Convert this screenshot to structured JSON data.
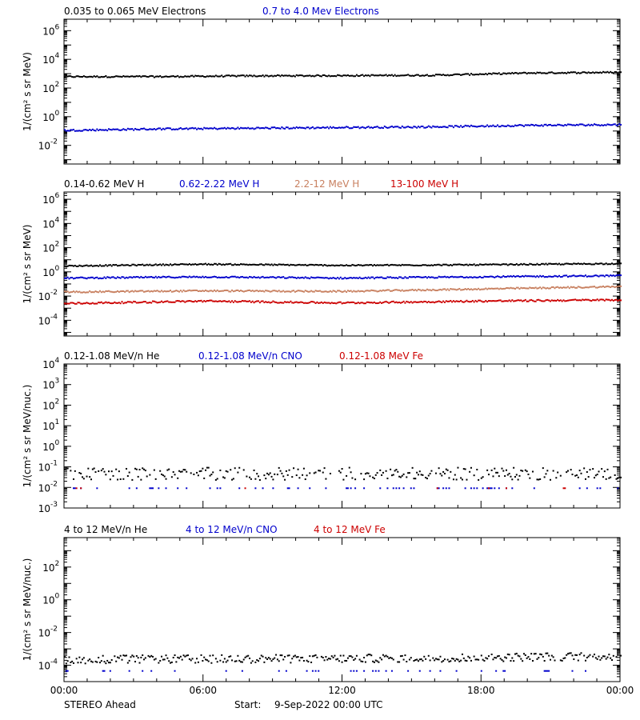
{
  "footer": {
    "left": "STEREO Ahead",
    "start_label": "Start:",
    "start_value": "9-Sep-2022 00:00 UTC"
  },
  "x_ticks": [
    "00:00",
    "06:00",
    "12:00",
    "18:00",
    "00:00"
  ],
  "chart_data": [
    {
      "type": "scatter",
      "ylabel": "1/(cm² s sr MeV)",
      "yscale": "log",
      "ylim_exp": [
        -3.3,
        6.8
      ],
      "ytick_exponents": [
        -2,
        0,
        2,
        4,
        6
      ],
      "xlim_hours": [
        0,
        24
      ],
      "series": [
        {
          "name": "0.035 to 0.065 MeV Electrons",
          "color": "#000000",
          "log_values": [
            [
              0,
              2.85
            ],
            [
              4,
              2.85
            ],
            [
              8,
              2.9
            ],
            [
              12,
              2.92
            ],
            [
              16,
              2.95
            ],
            [
              20,
              3.1
            ],
            [
              24,
              3.15
            ]
          ],
          "fill": 1.0,
          "jitter": 0.05
        },
        {
          "name": "0.7 to 4.0 Mev Electrons",
          "color": "#0000cc",
          "log_values": [
            [
              0,
              -0.9
            ],
            [
              4,
              -0.8
            ],
            [
              8,
              -0.75
            ],
            [
              12,
              -0.7
            ],
            [
              16,
              -0.65
            ],
            [
              20,
              -0.55
            ],
            [
              24,
              -0.5
            ]
          ],
          "fill": 1.0,
          "jitter": 0.06
        }
      ]
    },
    {
      "type": "scatter",
      "ylabel": "1/(cm² s sr MeV)",
      "yscale": "log",
      "ylim_exp": [
        -5.3,
        6.6
      ],
      "ytick_exponents": [
        -4,
        -2,
        0,
        2,
        4,
        6
      ],
      "xlim_hours": [
        0,
        24
      ],
      "series": [
        {
          "name": "0.14-0.62 MeV H",
          "color": "#000000",
          "log_values": [
            [
              0,
              0.55
            ],
            [
              6,
              0.7
            ],
            [
              12,
              0.6
            ],
            [
              18,
              0.65
            ],
            [
              24,
              0.75
            ]
          ],
          "fill": 1.0,
          "jitter": 0.05
        },
        {
          "name": "0.62-2.22 MeV H",
          "color": "#0000cc",
          "log_values": [
            [
              0,
              -0.45
            ],
            [
              6,
              -0.35
            ],
            [
              12,
              -0.45
            ],
            [
              18,
              -0.35
            ],
            [
              24,
              -0.25
            ]
          ],
          "fill": 1.0,
          "jitter": 0.06
        },
        {
          "name": "2.2-12 MeV H",
          "color": "#c88060",
          "log_values": [
            [
              0,
              -1.6
            ],
            [
              6,
              -1.5
            ],
            [
              12,
              -1.55
            ],
            [
              18,
              -1.35
            ],
            [
              24,
              -1.15
            ]
          ],
          "fill": 1.0,
          "jitter": 0.06
        },
        {
          "name": "13-100 MeV H",
          "color": "#cc0000",
          "log_values": [
            [
              0,
              -2.55
            ],
            [
              6,
              -2.35
            ],
            [
              12,
              -2.5
            ],
            [
              18,
              -2.35
            ],
            [
              24,
              -2.25
            ]
          ],
          "fill": 1.0,
          "jitter": 0.07
        }
      ]
    },
    {
      "type": "scatter",
      "ylabel": "1/(cm² s sr MeV/nuc.)",
      "yscale": "log",
      "ylim_exp": [
        -3.0,
        4.0
      ],
      "ytick_exponents": [
        -3,
        -2,
        -1,
        0,
        1,
        2,
        3,
        4
      ],
      "xlim_hours": [
        0,
        24
      ],
      "series": [
        {
          "name": "0.12-1.08 MeV/n He",
          "color": "#000000",
          "log_values": [
            [
              0,
              -1.3
            ],
            [
              24,
              -1.3
            ]
          ],
          "fill": 0.75,
          "jitter": 0.3
        },
        {
          "name": "0.12-1.08 MeV/n CNO",
          "color": "#0000cc",
          "log_values": [
            [
              0,
              -2.0
            ],
            [
              24,
              -2.0
            ]
          ],
          "fill": 0.15,
          "jitter": 0.0
        },
        {
          "name": "0.12-1.08 MeV Fe",
          "color": "#cc0000",
          "log_values": [
            [
              0,
              -2.0
            ],
            [
              24,
              -2.0
            ]
          ],
          "fill": 0.02,
          "jitter": 0.0
        }
      ]
    },
    {
      "type": "scatter",
      "ylabel": "1/(cm² s sr MeV/nuc.)",
      "yscale": "log",
      "ylim_exp": [
        -5.0,
        3.8
      ],
      "ytick_exponents": [
        -4,
        -2,
        0,
        2
      ],
      "xlim_hours": [
        0,
        24
      ],
      "series": [
        {
          "name": "4 to 12 MeV/n He",
          "color": "#000000",
          "log_values": [
            [
              0,
              -3.6
            ],
            [
              12,
              -3.55
            ],
            [
              24,
              -3.4
            ]
          ],
          "fill": 0.9,
          "jitter": 0.25
        },
        {
          "name": "4 to 12 MeV/n CNO",
          "color": "#0000cc",
          "log_values": [
            [
              0,
              -4.3
            ],
            [
              24,
              -4.3
            ]
          ],
          "fill": 0.12,
          "jitter": 0.0
        },
        {
          "name": "4 to 12 MeV Fe",
          "color": "#cc0000",
          "log_values": [
            [
              0,
              -4.3
            ],
            [
              24,
              -4.3
            ]
          ],
          "fill": 0.0,
          "jitter": 0.0
        }
      ]
    }
  ]
}
